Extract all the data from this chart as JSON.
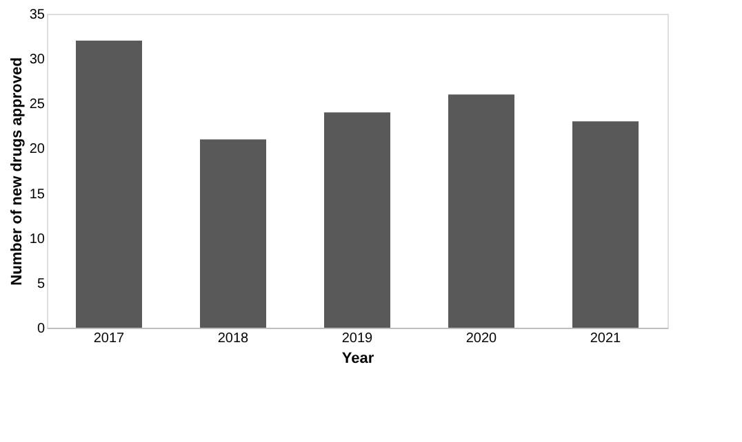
{
  "chart_data": {
    "type": "bar",
    "xlabel": "Year",
    "ylabel": "Number of new drugs approved",
    "categories": [
      "2017",
      "2018",
      "2019",
      "2020",
      "2021"
    ],
    "values": [
      32,
      21,
      24,
      26,
      23
    ],
    "color": "#595959",
    "ylim": [
      0,
      35
    ],
    "yticks": [
      0,
      5,
      10,
      15,
      20,
      25,
      30,
      35
    ],
    "grid": false
  }
}
